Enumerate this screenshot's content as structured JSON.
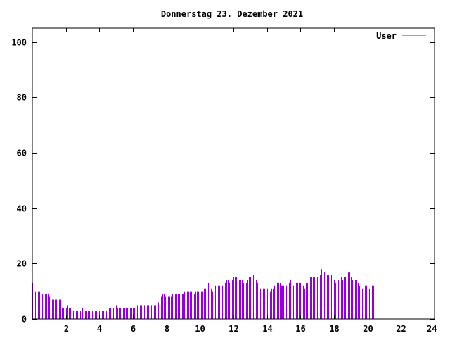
{
  "chart_data": {
    "type": "bar",
    "title": "Donnerstag 23. Dezember 2021",
    "xlabel": "",
    "ylabel": "",
    "xlim": [
      0,
      24
    ],
    "ylim": [
      0,
      105
    ],
    "x_ticks": [
      "2",
      "4",
      "6",
      "8",
      "10",
      "12",
      "14",
      "16",
      "18",
      "20",
      "22",
      "24"
    ],
    "y_ticks": [
      "0",
      "20",
      "40",
      "60",
      "80",
      "100"
    ],
    "grid": false,
    "legend_position": "top-right",
    "color": "#9400d3",
    "series": [
      {
        "name": "User",
        "sample_interval_hours": 0.08333,
        "values": [
          13,
          12,
          10,
          10,
          10,
          10,
          10,
          9,
          9,
          9,
          9,
          9,
          8,
          8,
          7,
          7,
          7,
          7,
          7,
          7,
          7,
          4,
          4,
          4,
          4,
          5,
          4,
          4,
          3,
          3,
          3,
          3,
          3,
          3,
          3,
          4,
          4,
          3,
          3,
          3,
          3,
          3,
          3,
          3,
          3,
          3,
          3,
          3,
          3,
          3,
          3,
          3,
          3,
          3,
          3,
          4,
          4,
          4,
          4,
          5,
          5,
          4,
          4,
          4,
          4,
          4,
          4,
          4,
          4,
          4,
          4,
          4,
          4,
          4,
          4,
          5,
          5,
          5,
          5,
          5,
          5,
          5,
          5,
          5,
          5,
          5,
          5,
          5,
          5,
          5,
          6,
          7,
          8,
          9,
          9,
          8,
          8,
          8,
          8,
          8,
          9,
          9,
          9,
          9,
          9,
          9,
          9,
          9,
          9,
          10,
          10,
          10,
          10,
          10,
          10,
          9,
          9,
          10,
          10,
          10,
          10,
          10,
          10,
          11,
          11,
          12,
          13,
          12,
          11,
          10,
          11,
          12,
          12,
          12,
          12,
          13,
          12,
          13,
          13,
          14,
          14,
          13,
          13,
          14,
          15,
          15,
          15,
          15,
          14,
          14,
          14,
          13,
          14,
          13,
          14,
          15,
          15,
          15,
          16,
          15,
          14,
          13,
          12,
          11,
          11,
          11,
          11,
          10,
          11,
          11,
          10,
          11,
          11,
          12,
          13,
          13,
          13,
          13,
          12,
          12,
          12,
          12,
          12,
          13,
          13,
          14,
          13,
          12,
          12,
          13,
          13,
          13,
          13,
          13,
          12,
          11,
          13,
          13,
          15,
          15,
          15,
          15,
          15,
          15,
          15,
          15,
          16,
          18,
          17,
          17,
          17,
          16,
          16,
          16,
          16,
          16,
          14,
          13,
          14,
          14,
          15,
          15,
          14,
          15,
          15,
          17,
          17,
          17,
          15,
          14,
          14,
          14,
          14,
          13,
          12,
          12,
          11,
          11,
          12,
          12,
          11,
          11,
          13,
          12,
          12,
          12
        ]
      }
    ]
  }
}
